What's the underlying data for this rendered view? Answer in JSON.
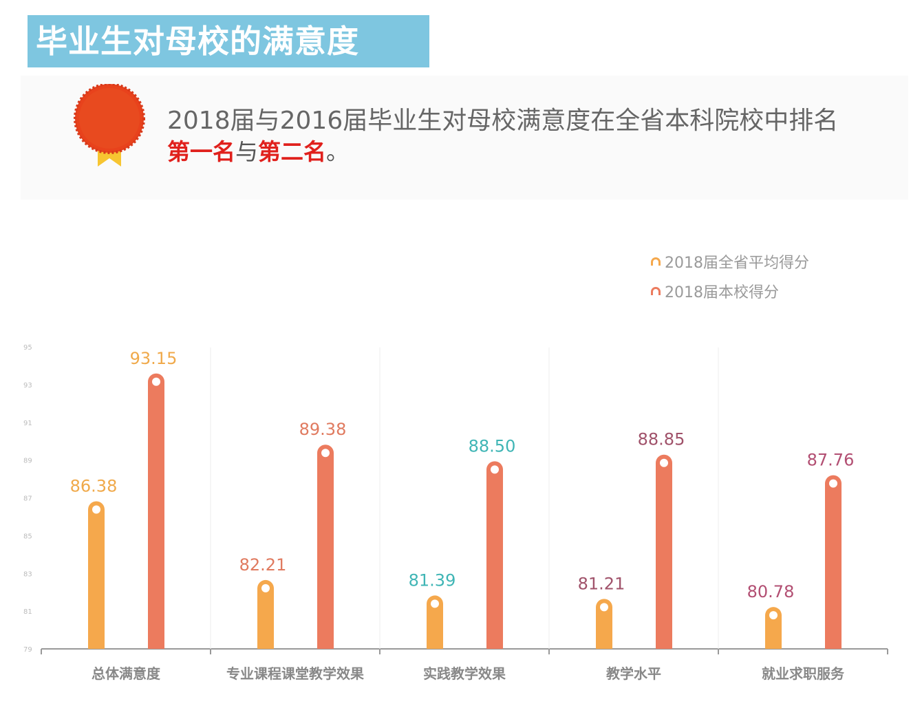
{
  "header": {
    "title": "毕业生对母校的满意度"
  },
  "summary": {
    "line1": "2018届与2016届毕业生对母校满意度在全省本科院校中排名",
    "rank1": "第一名",
    "conj": "与",
    "rank2": "第二名",
    "end": "。"
  },
  "chart_data": {
    "type": "bar",
    "categories": [
      "总体满意度",
      "专业课程课堂教学效果",
      "实践教学效果",
      "教学水平",
      "就业求职服务"
    ],
    "series": [
      {
        "name": "2018届全省平均得分",
        "values": [
          86.38,
          82.21,
          81.39,
          81.21,
          80.78
        ],
        "color": "#f5a84c"
      },
      {
        "name": "2018届本校得分",
        "values": [
          93.15,
          89.38,
          88.5,
          88.85,
          87.76
        ],
        "color": "#ec7b5e"
      }
    ],
    "label_colors": [
      "#f0a94a",
      "#e07a5f",
      "#3fb5b5",
      "#a0526a",
      "#b24e72"
    ],
    "yticks": [
      "79",
      "81",
      "83",
      "85",
      "87",
      "89",
      "91",
      "93",
      "95"
    ],
    "ylim": [
      79,
      95
    ],
    "legend": "top-right",
    "grid": false
  }
}
